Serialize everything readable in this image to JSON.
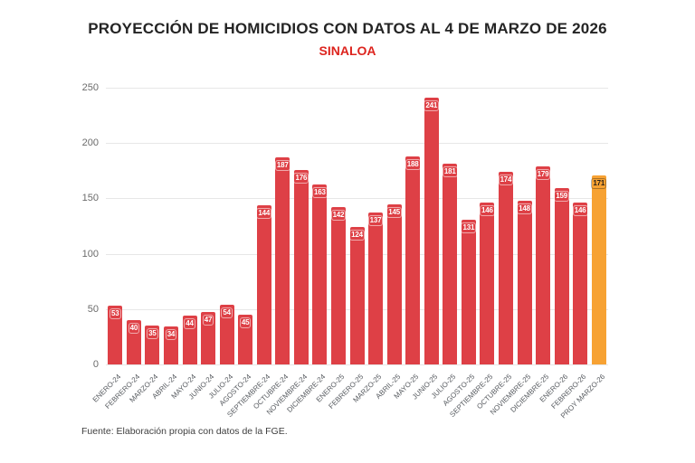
{
  "title": "PROYECCIÓN DE HOMICIDIOS CON DATOS AL 4 DE MARZO DE 2026",
  "subtitle": "SINALOA",
  "source": "Fuente: Elaboración propia con datos de la FGE.",
  "colors": {
    "bar": "#de4046",
    "projection_bar": "#f7a233",
    "subtitle": "#dd241e",
    "value_label_text": "#ffffff",
    "projection_value_label_text": "#2b2118",
    "value_label_border": "rgba(255,255,255,0.55)",
    "projection_value_label_border": "rgba(0,0,0,0.3)",
    "gridline": "#e7e7e7",
    "axis_text": "#6b6b6b"
  },
  "chart_data": {
    "type": "bar",
    "title": "PROYECCIÓN DE HOMICIDIOS CON DATOS AL 4 DE MARZO DE 2026",
    "subtitle": "SINALOA",
    "xlabel": "",
    "ylabel": "",
    "ylim": [
      0,
      250
    ],
    "yticks": [
      0,
      50,
      100,
      150,
      200,
      250
    ],
    "grid": true,
    "legend": false,
    "highlight_index": 26,
    "categories": [
      "ENERO-24",
      "FEBRERO-24",
      "MARZO-24",
      "ABRIL-24",
      "MAYO-24",
      "JUNIO-24",
      "JULIO-24",
      "AGOSTO-24",
      "SEPTIEMBRE-24",
      "OCTUBRE-24",
      "NOVIEMBRE-24",
      "DICIEMBRE-24",
      "ENERO-25",
      "FEBRERO-25",
      "MARZO-25",
      "ABRIL-25",
      "MAYO-25",
      "JUNIO-25",
      "JULIO-25",
      "AGOSTO-25",
      "SEPTIEMBRE-25",
      "OCTUBRE-25",
      "NOVIEMBRE-25",
      "DICIEMBRE-25",
      "ENERO-26",
      "FEBRERO-26",
      "PROY MARZO-26"
    ],
    "values": [
      53,
      40,
      35,
      34,
      44,
      47,
      54,
      45,
      144,
      187,
      176,
      163,
      142,
      124,
      137,
      145,
      188,
      241,
      181,
      131,
      146,
      174,
      148,
      179,
      159,
      146,
      171
    ]
  }
}
